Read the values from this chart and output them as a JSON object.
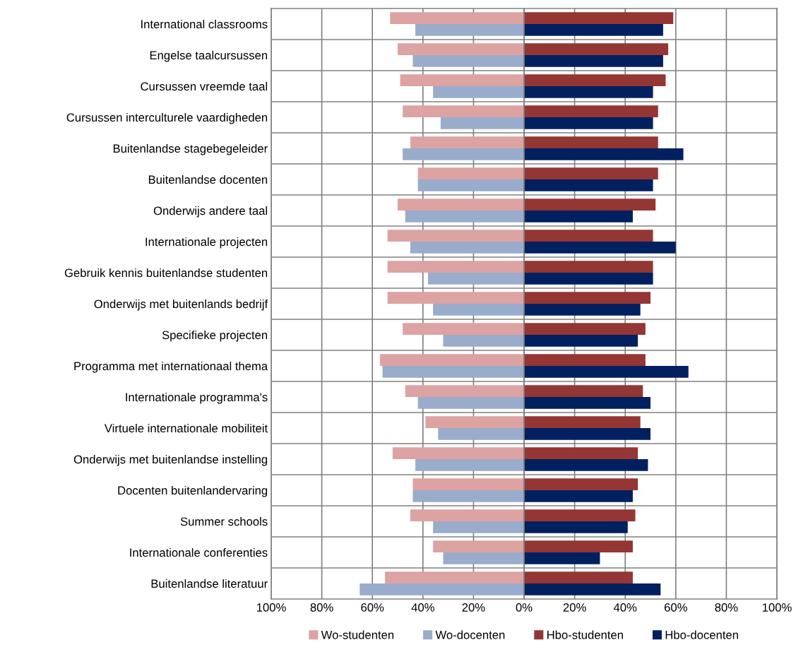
{
  "chart_data": [
    {
      "type": "bar",
      "orientation": "horizontal",
      "categories": [
        "International classrooms",
        "Engelse taalcursussen",
        "Cursussen vreemde taal",
        "Cursussen interculturele vaardigheden",
        "Buitenlandse stagebegeleider",
        "Buitenlandse docenten",
        "Onderwijs andere taal",
        "Internationale projecten",
        "Gebruik kennis buitenlandse studenten",
        "Onderwijs met buitenlands bedrijf",
        "Specifieke projecten",
        "Programma met internationaal thema",
        "Internationale programma's",
        "Virtuele internationale mobiliteit",
        "Onderwijs met buitenlandse instelling",
        "Docenten buitenlandervaring",
        "Summer schools",
        "Internationale conferenties",
        "Buitenlandse literatuur"
      ],
      "series": [
        {
          "name": "Wo-studenten",
          "color": "#dca3a2",
          "values": [
            53,
            50,
            49,
            48,
            45,
            42,
            50,
            54,
            54,
            54,
            48,
            57,
            47,
            39,
            52,
            44,
            45,
            36,
            55
          ]
        },
        {
          "name": "Wo-docenten",
          "color": "#9aaccb",
          "values": [
            43,
            44,
            36,
            33,
            48,
            42,
            47,
            45,
            38,
            36,
            32,
            56,
            42,
            34,
            43,
            44,
            36,
            32,
            65
          ]
        }
      ],
      "xlim": [
        100,
        0
      ],
      "xticks": [
        {
          "value": 100,
          "label": "100%"
        },
        {
          "value": 80,
          "label": "80%"
        },
        {
          "value": 60,
          "label": "60%"
        },
        {
          "value": 40,
          "label": "40%"
        },
        {
          "value": 20,
          "label": "20%"
        }
      ],
      "grid": true,
      "legend": "bottom"
    },
    {
      "type": "bar",
      "orientation": "horizontal",
      "categories": [
        null,
        null,
        null,
        null,
        null,
        null,
        null,
        null,
        null,
        null,
        null,
        null,
        null,
        null,
        null,
        null,
        null,
        null,
        null
      ],
      "series": [
        {
          "name": "Hbo-studenten",
          "color": "#943634",
          "values": [
            59,
            57,
            56,
            53,
            53,
            53,
            52,
            51,
            51,
            50,
            48,
            48,
            47,
            46,
            45,
            45,
            44,
            43,
            43
          ]
        },
        {
          "name": "Hbo-docenten",
          "color": "#002060",
          "values": [
            55,
            55,
            51,
            51,
            63,
            51,
            43,
            60,
            51,
            46,
            45,
            65,
            50,
            50,
            49,
            43,
            41,
            30,
            54
          ]
        }
      ],
      "xlim": [
        0,
        100
      ],
      "xticks": [
        {
          "value": 0,
          "label": "0%"
        },
        {
          "value": 20,
          "label": "20%"
        },
        {
          "value": 40,
          "label": "40%"
        },
        {
          "value": 60,
          "label": "60%"
        },
        {
          "value": 80,
          "label": "80%"
        },
        {
          "value": 100,
          "label": "100%"
        }
      ],
      "grid": true,
      "legend": "bottom",
      "tick_labels": "x"
    }
  ]
}
